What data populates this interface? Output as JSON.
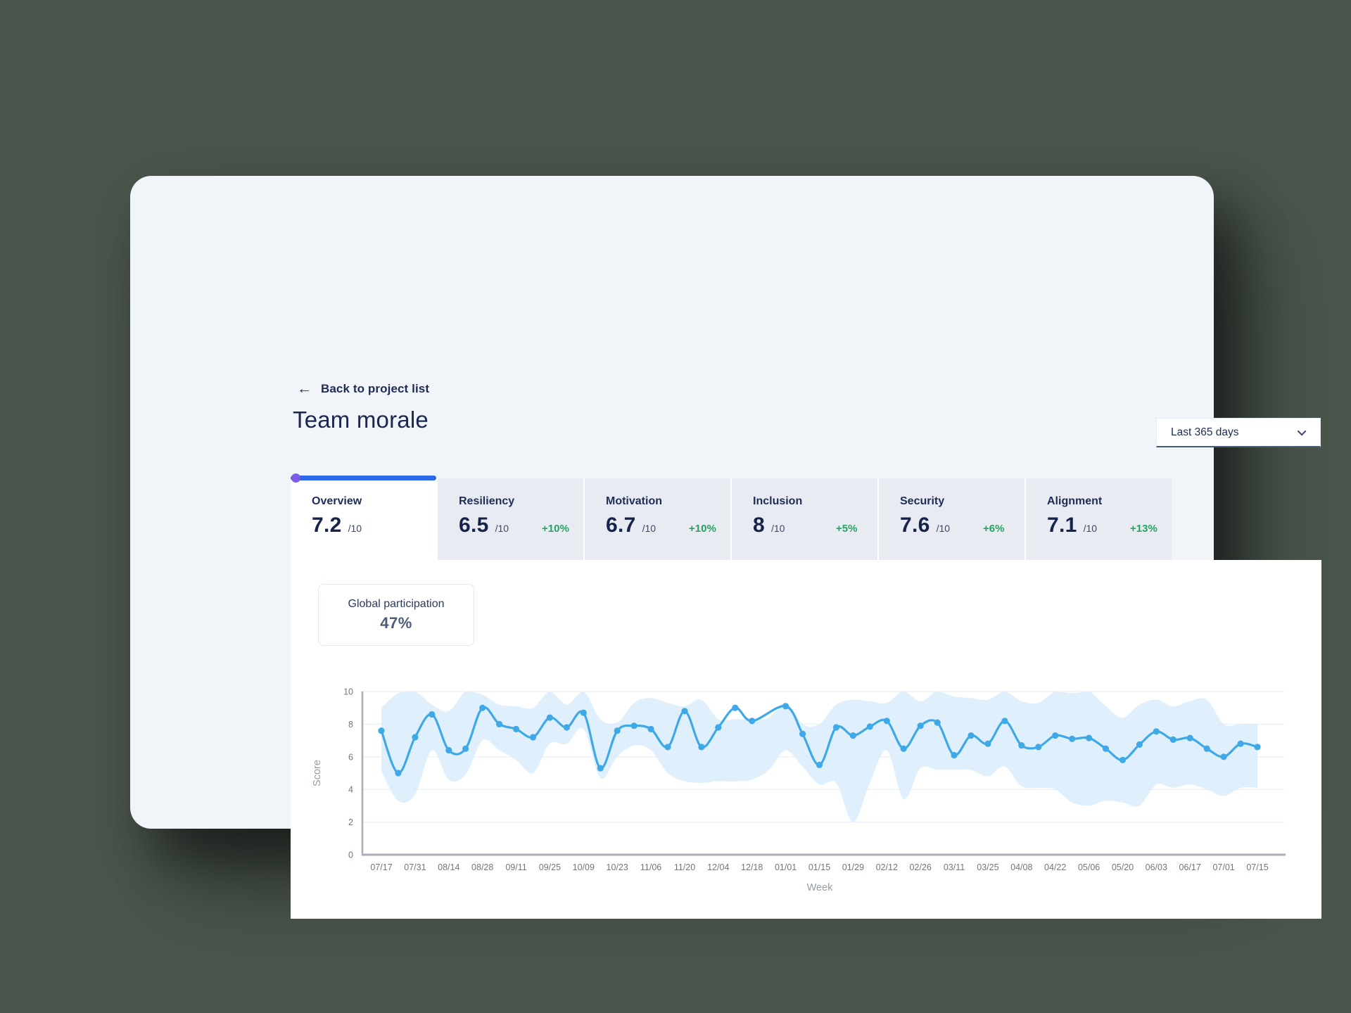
{
  "back_link": {
    "icon": "arrow-left",
    "label": "Back to project list"
  },
  "title": "Team morale",
  "date_filter": {
    "value": "Last 365 days",
    "icon": "chevron-down"
  },
  "tabs": [
    {
      "label": "Overview",
      "score": "7.2",
      "denominator": "/10",
      "delta": "",
      "active": true
    },
    {
      "label": "Resiliency",
      "score": "6.5",
      "denominator": "/10",
      "delta": "+10%",
      "active": false
    },
    {
      "label": "Motivation",
      "score": "6.7",
      "denominator": "/10",
      "delta": "+10%",
      "active": false
    },
    {
      "label": "Inclusion",
      "score": "8",
      "denominator": "/10",
      "delta": "+5%",
      "active": false
    },
    {
      "label": "Security",
      "score": "7.6",
      "denominator": "/10",
      "delta": "+6%",
      "active": false
    },
    {
      "label": "Alignment",
      "score": "7.1",
      "denominator": "/10",
      "delta": "+13%",
      "active": false
    }
  ],
  "participation_card": {
    "label": "Global participation",
    "value": "47%"
  },
  "chart_data": {
    "type": "line",
    "xlabel": "Week",
    "ylabel": "Score",
    "ylim": [
      0,
      10
    ],
    "yticks": [
      0,
      2,
      4,
      6,
      8,
      10
    ],
    "grid": "horizontal",
    "legend": "none",
    "x": [
      "07/17",
      "07/24",
      "07/31",
      "08/07",
      "08/14",
      "08/21",
      "08/28",
      "09/04",
      "09/11",
      "09/18",
      "09/25",
      "10/02",
      "10/09",
      "10/16",
      "10/23",
      "10/30",
      "11/06",
      "11/13",
      "11/20",
      "11/27",
      "12/04",
      "12/11",
      "12/18",
      "12/25",
      "01/01",
      "01/08",
      "01/15",
      "01/22",
      "01/29",
      "02/05",
      "02/12",
      "02/19",
      "02/26",
      "03/04",
      "03/11",
      "03/18",
      "03/25",
      "04/01",
      "04/08",
      "04/15",
      "04/22",
      "04/29",
      "05/06",
      "05/13",
      "05/20",
      "05/27",
      "06/03",
      "06/10",
      "06/17",
      "06/24",
      "07/01",
      "07/08",
      "07/15"
    ],
    "x_tick_labels": [
      "07/17",
      "07/31",
      "08/14",
      "08/28",
      "09/11",
      "09/25",
      "10/09",
      "10/23",
      "11/06",
      "11/20",
      "12/04",
      "12/18",
      "01/01",
      "01/15",
      "01/29",
      "02/12",
      "02/26",
      "03/11",
      "03/25",
      "04/08",
      "04/22",
      "05/06",
      "05/20",
      "06/03",
      "06/17",
      "07/01",
      "07/15"
    ],
    "series": [
      {
        "name": "Weekly morale score",
        "type": "line+markers",
        "color": "#3fa9e8",
        "values": [
          7.6,
          5.0,
          7.2,
          8.6,
          6.4,
          6.5,
          9.0,
          8.0,
          7.7,
          7.2,
          8.4,
          7.8,
          8.7,
          5.3,
          7.6,
          7.9,
          7.7,
          6.6,
          8.8,
          6.6,
          7.8,
          9.0,
          8.2,
          null,
          9.1,
          7.4,
          5.5,
          7.8,
          7.3,
          7.85,
          8.2,
          6.5,
          7.9,
          8.1,
          6.1,
          7.3,
          6.8,
          8.2,
          6.7,
          6.6,
          7.3,
          7.1,
          7.15,
          6.5,
          5.8,
          6.75,
          7.55,
          7.05,
          7.15,
          6.5,
          6.0,
          6.8,
          6.6
        ]
      },
      {
        "name": "Score range band",
        "type": "band",
        "color": "#d9edfb",
        "upper": [
          9.0,
          9.9,
          10,
          9.2,
          8.8,
          10,
          9.8,
          9.2,
          9.1,
          9.0,
          10,
          9.2,
          10,
          8.3,
          8.1,
          9.3,
          9.6,
          9.3,
          9.1,
          9.5,
          8.3,
          8.3,
          8.3,
          8.4,
          9.3,
          8.0,
          8.0,
          9.2,
          9.5,
          9.4,
          9.3,
          10,
          9.4,
          10,
          9.7,
          9.6,
          9.5,
          10,
          9.4,
          9.3,
          10,
          9.9,
          10,
          9.1,
          8.4,
          9.2,
          9.5,
          9.1,
          9.4,
          9.5,
          8.0,
          8.0,
          8.0
        ],
        "lower": [
          5.1,
          3.3,
          3.7,
          6.4,
          4.6,
          4.9,
          7.0,
          6.4,
          5.8,
          5.0,
          6.8,
          6.8,
          7.7,
          4.7,
          6.0,
          6.7,
          6.4,
          5.0,
          4.5,
          4.4,
          4.5,
          4.5,
          4.6,
          5.2,
          6.4,
          5.4,
          4.3,
          4.4,
          2.0,
          4.4,
          6.4,
          3.4,
          5.3,
          5.2,
          5.2,
          5.2,
          4.8,
          5.4,
          4.2,
          4.1,
          4.0,
          3.2,
          3.0,
          3.3,
          3.2,
          3.0,
          4.3,
          4.1,
          4.3,
          4.0,
          3.6,
          4.1,
          4.1
        ]
      }
    ],
    "missing_weeks": [
      "12/25"
    ]
  },
  "colors": {
    "page_background": "#4a564c",
    "card_background": "#f1f4f9",
    "panel_background": "#ffffff",
    "inactive_tab_background": "#e8ebf2",
    "active_tab_bar": "#2d68e8",
    "active_tab_dot": "#7a5ce8",
    "navy_text": "#1e2c55",
    "score_text": "#16234b",
    "delta_green": "#27a263",
    "line_blue": "#3fa9e8",
    "band_blue": "#d9edfb",
    "gridline": "#edf1f7",
    "axis_gray": "#a9aeb6",
    "tick_text": "#71767e",
    "axis_title_text": "#959ca6"
  }
}
